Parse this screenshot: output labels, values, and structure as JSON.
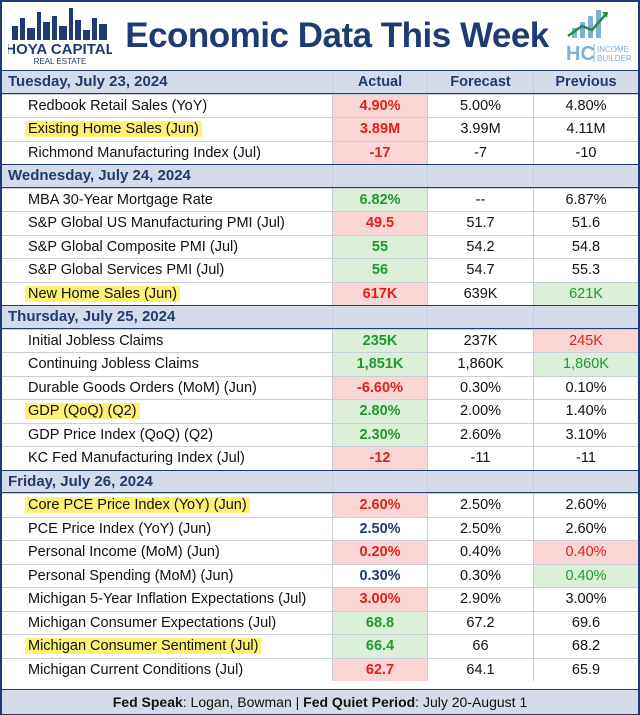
{
  "title": "Economic Data This Week",
  "logo_left": {
    "line1": "HOYA CAPITAL",
    "line2": "REAL ESTATE"
  },
  "logo_right": {
    "letters": "HC",
    "line1": "INCOME",
    "line2": "BUILDER"
  },
  "columns": {
    "actual": "Actual",
    "forecast": "Forecast",
    "previous": "Previous"
  },
  "sections": [
    {
      "day": "Tuesday, July 23, 2024",
      "rows": [
        {
          "name": "Redbook Retail Sales (YoY)",
          "actual": "4.90%",
          "forecast": "5.00%",
          "previous": "4.80%",
          "highlight": false,
          "actual_color": "red",
          "actual_bg": "red",
          "prev_color": "",
          "prev_bg": ""
        },
        {
          "name": "Existing Home Sales (Jun)",
          "actual": "3.89M",
          "forecast": "3.99M",
          "previous": "4.11M",
          "highlight": true,
          "actual_color": "red",
          "actual_bg": "red",
          "prev_color": "",
          "prev_bg": ""
        },
        {
          "name": "Richmond Manufacturing Index (Jul)",
          "actual": "-17",
          "forecast": "-7",
          "previous": "-10",
          "highlight": false,
          "actual_color": "red",
          "actual_bg": "red",
          "prev_color": "",
          "prev_bg": ""
        }
      ]
    },
    {
      "day": "Wednesday, July 24, 2024",
      "rows": [
        {
          "name": "MBA 30-Year Mortgage Rate",
          "actual": "6.82%",
          "forecast": "--",
          "previous": "6.87%",
          "highlight": false,
          "actual_color": "green",
          "actual_bg": "green",
          "prev_color": "",
          "prev_bg": ""
        },
        {
          "name": "S&P Global US Manufacturing PMI (Jul)",
          "actual": "49.5",
          "forecast": "51.7",
          "previous": "51.6",
          "highlight": false,
          "actual_color": "red",
          "actual_bg": "red",
          "prev_color": "",
          "prev_bg": ""
        },
        {
          "name": "S&P Global Composite PMI (Jul)",
          "actual": "55",
          "forecast": "54.2",
          "previous": "54.8",
          "highlight": false,
          "actual_color": "green",
          "actual_bg": "green",
          "prev_color": "",
          "prev_bg": ""
        },
        {
          "name": "S&P Global Services PMI (Jul)",
          "actual": "56",
          "forecast": "54.7",
          "previous": "55.3",
          "highlight": false,
          "actual_color": "green",
          "actual_bg": "green",
          "prev_color": "",
          "prev_bg": ""
        },
        {
          "name": "New Home Sales (Jun)",
          "actual": "617K",
          "forecast": "639K",
          "previous": "621K",
          "highlight": true,
          "actual_color": "red",
          "actual_bg": "red",
          "prev_color": "green",
          "prev_bg": "green"
        }
      ]
    },
    {
      "day": "Thursday, July 25, 2024",
      "rows": [
        {
          "name": "Initial Jobless Claims",
          "actual": "235K",
          "forecast": "237K",
          "previous": "245K",
          "highlight": false,
          "actual_color": "green",
          "actual_bg": "green",
          "prev_color": "red",
          "prev_bg": "red"
        },
        {
          "name": "Continuing Jobless Claims",
          "actual": "1,851K",
          "forecast": "1,860K",
          "previous": "1,860K",
          "highlight": false,
          "actual_color": "green",
          "actual_bg": "green",
          "prev_color": "green",
          "prev_bg": "green"
        },
        {
          "name": "Durable Goods Orders (MoM) (Jun)",
          "actual": "-6.60%",
          "forecast": "0.30%",
          "previous": "0.10%",
          "highlight": false,
          "actual_color": "red",
          "actual_bg": "red",
          "prev_color": "",
          "prev_bg": ""
        },
        {
          "name": "GDP (QoQ) (Q2)",
          "actual": "2.80%",
          "forecast": "2.00%",
          "previous": "1.40%",
          "highlight": true,
          "actual_color": "green",
          "actual_bg": "green",
          "prev_color": "",
          "prev_bg": ""
        },
        {
          "name": "GDP Price Index (QoQ) (Q2)",
          "actual": "2.30%",
          "forecast": "2.60%",
          "previous": "3.10%",
          "highlight": false,
          "actual_color": "green",
          "actual_bg": "green",
          "prev_color": "",
          "prev_bg": ""
        },
        {
          "name": "KC Fed Manufacturing Index (Jul)",
          "actual": "-12",
          "forecast": "-11",
          "previous": "-11",
          "highlight": false,
          "actual_color": "red",
          "actual_bg": "red",
          "prev_color": "",
          "prev_bg": ""
        }
      ]
    },
    {
      "day": "Friday, July 26, 2024",
      "rows": [
        {
          "name": "Core PCE Price Index (YoY) (Jun)",
          "actual": "2.60%",
          "forecast": "2.50%",
          "previous": "2.60%",
          "highlight": true,
          "actual_color": "red",
          "actual_bg": "red",
          "prev_color": "",
          "prev_bg": ""
        },
        {
          "name": "PCE Price Index (YoY) (Jun)",
          "actual": "2.50%",
          "forecast": "2.50%",
          "previous": "2.60%",
          "highlight": false,
          "actual_color": "blue",
          "actual_bg": "",
          "prev_color": "",
          "prev_bg": ""
        },
        {
          "name": "Personal Income (MoM) (Jun)",
          "actual": "0.20%",
          "forecast": "0.40%",
          "previous": "0.40%",
          "highlight": false,
          "actual_color": "red",
          "actual_bg": "red",
          "prev_color": "red",
          "prev_bg": "red"
        },
        {
          "name": "Personal Spending (MoM) (Jun)",
          "actual": "0.30%",
          "forecast": "0.30%",
          "previous": "0.40%",
          "highlight": false,
          "actual_color": "blue",
          "actual_bg": "",
          "prev_color": "green",
          "prev_bg": "green"
        },
        {
          "name": "Michigan 5-Year Inflation Expectations (Jul)",
          "actual": "3.00%",
          "forecast": "2.90%",
          "previous": "3.00%",
          "highlight": false,
          "actual_color": "red",
          "actual_bg": "red",
          "prev_color": "",
          "prev_bg": ""
        },
        {
          "name": "Michigan Consumer Expectations (Jul)",
          "actual": "68.8",
          "forecast": "67.2",
          "previous": "69.6",
          "highlight": false,
          "actual_color": "green",
          "actual_bg": "green",
          "prev_color": "",
          "prev_bg": ""
        },
        {
          "name": "Michigan Consumer Sentiment (Jul)",
          "actual": "66.4",
          "forecast": "66",
          "previous": "68.2",
          "highlight": true,
          "actual_color": "green",
          "actual_bg": "green",
          "prev_color": "",
          "prev_bg": ""
        },
        {
          "name": "Michigan Current Conditions (Jul)",
          "actual": "62.7",
          "forecast": "64.1",
          "previous": "65.9",
          "highlight": false,
          "actual_color": "red",
          "actual_bg": "red",
          "prev_color": "",
          "prev_bg": ""
        }
      ]
    }
  ],
  "footer": {
    "speak_label": "Fed Speak",
    "speak_text": ": Logan, Bowman | ",
    "quiet_label": "Fed Quiet Period",
    "quiet_text": ": July 20-August 1"
  }
}
